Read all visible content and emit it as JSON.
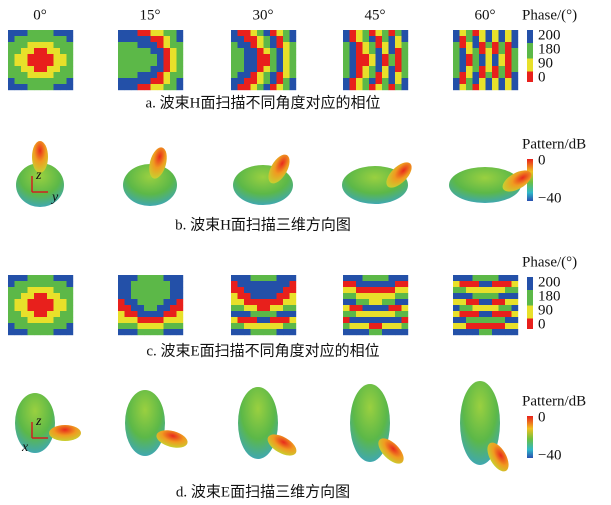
{
  "columns": [
    "0°",
    "15°",
    "30°",
    "45°",
    "60°"
  ],
  "rows": [
    {
      "caption": "a. 波束H面扫描不同角度对应的相位",
      "colorbar": {
        "title": "Phase/(°)",
        "ticks": [
          "200",
          "180",
          "90",
          "0"
        ]
      }
    },
    {
      "caption": "b. 波束H面扫描三维方向图",
      "colorbar": {
        "title": "Pattern/dB",
        "ticks": [
          "0",
          "−40"
        ]
      },
      "axes": [
        "z",
        "y"
      ]
    },
    {
      "caption": "c. 波束E面扫描不同角度对应的相位",
      "colorbar": {
        "title": "Phase/(°)",
        "ticks": [
          "200",
          "180",
          "90",
          "0"
        ]
      }
    },
    {
      "caption": "d. 波束E面扫描三维方向图",
      "colorbar": {
        "title": "Pattern/dB",
        "ticks": [
          "0",
          "−40"
        ]
      },
      "axes": [
        "z",
        "x"
      ]
    }
  ]
}
